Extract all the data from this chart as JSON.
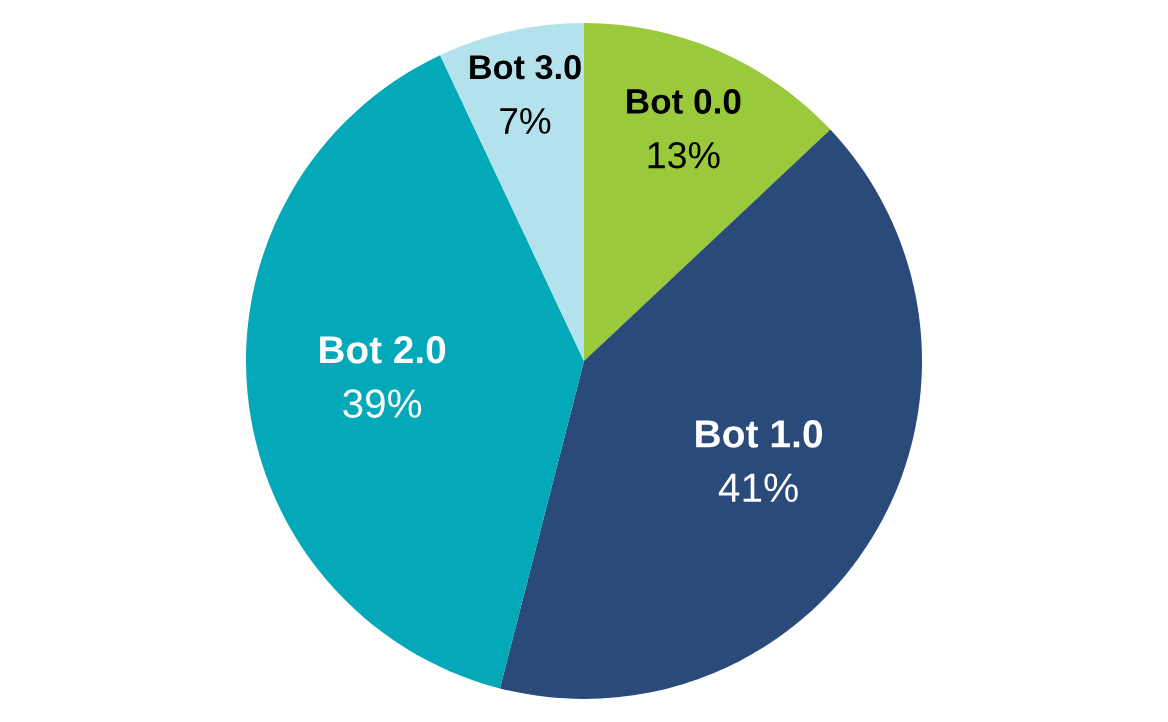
{
  "chart_data": {
    "type": "pie",
    "categories": [
      "Bot 0.0",
      "Bot 1.0",
      "Bot 2.0",
      "Bot 3.0"
    ],
    "values": [
      13,
      41,
      39,
      7
    ],
    "colors": [
      "#9bc93c",
      "#2a4a7a",
      "#04a9b9",
      "#b3e1ec"
    ],
    "value_labels": [
      "13%",
      "41%",
      "39%",
      "7%"
    ]
  }
}
